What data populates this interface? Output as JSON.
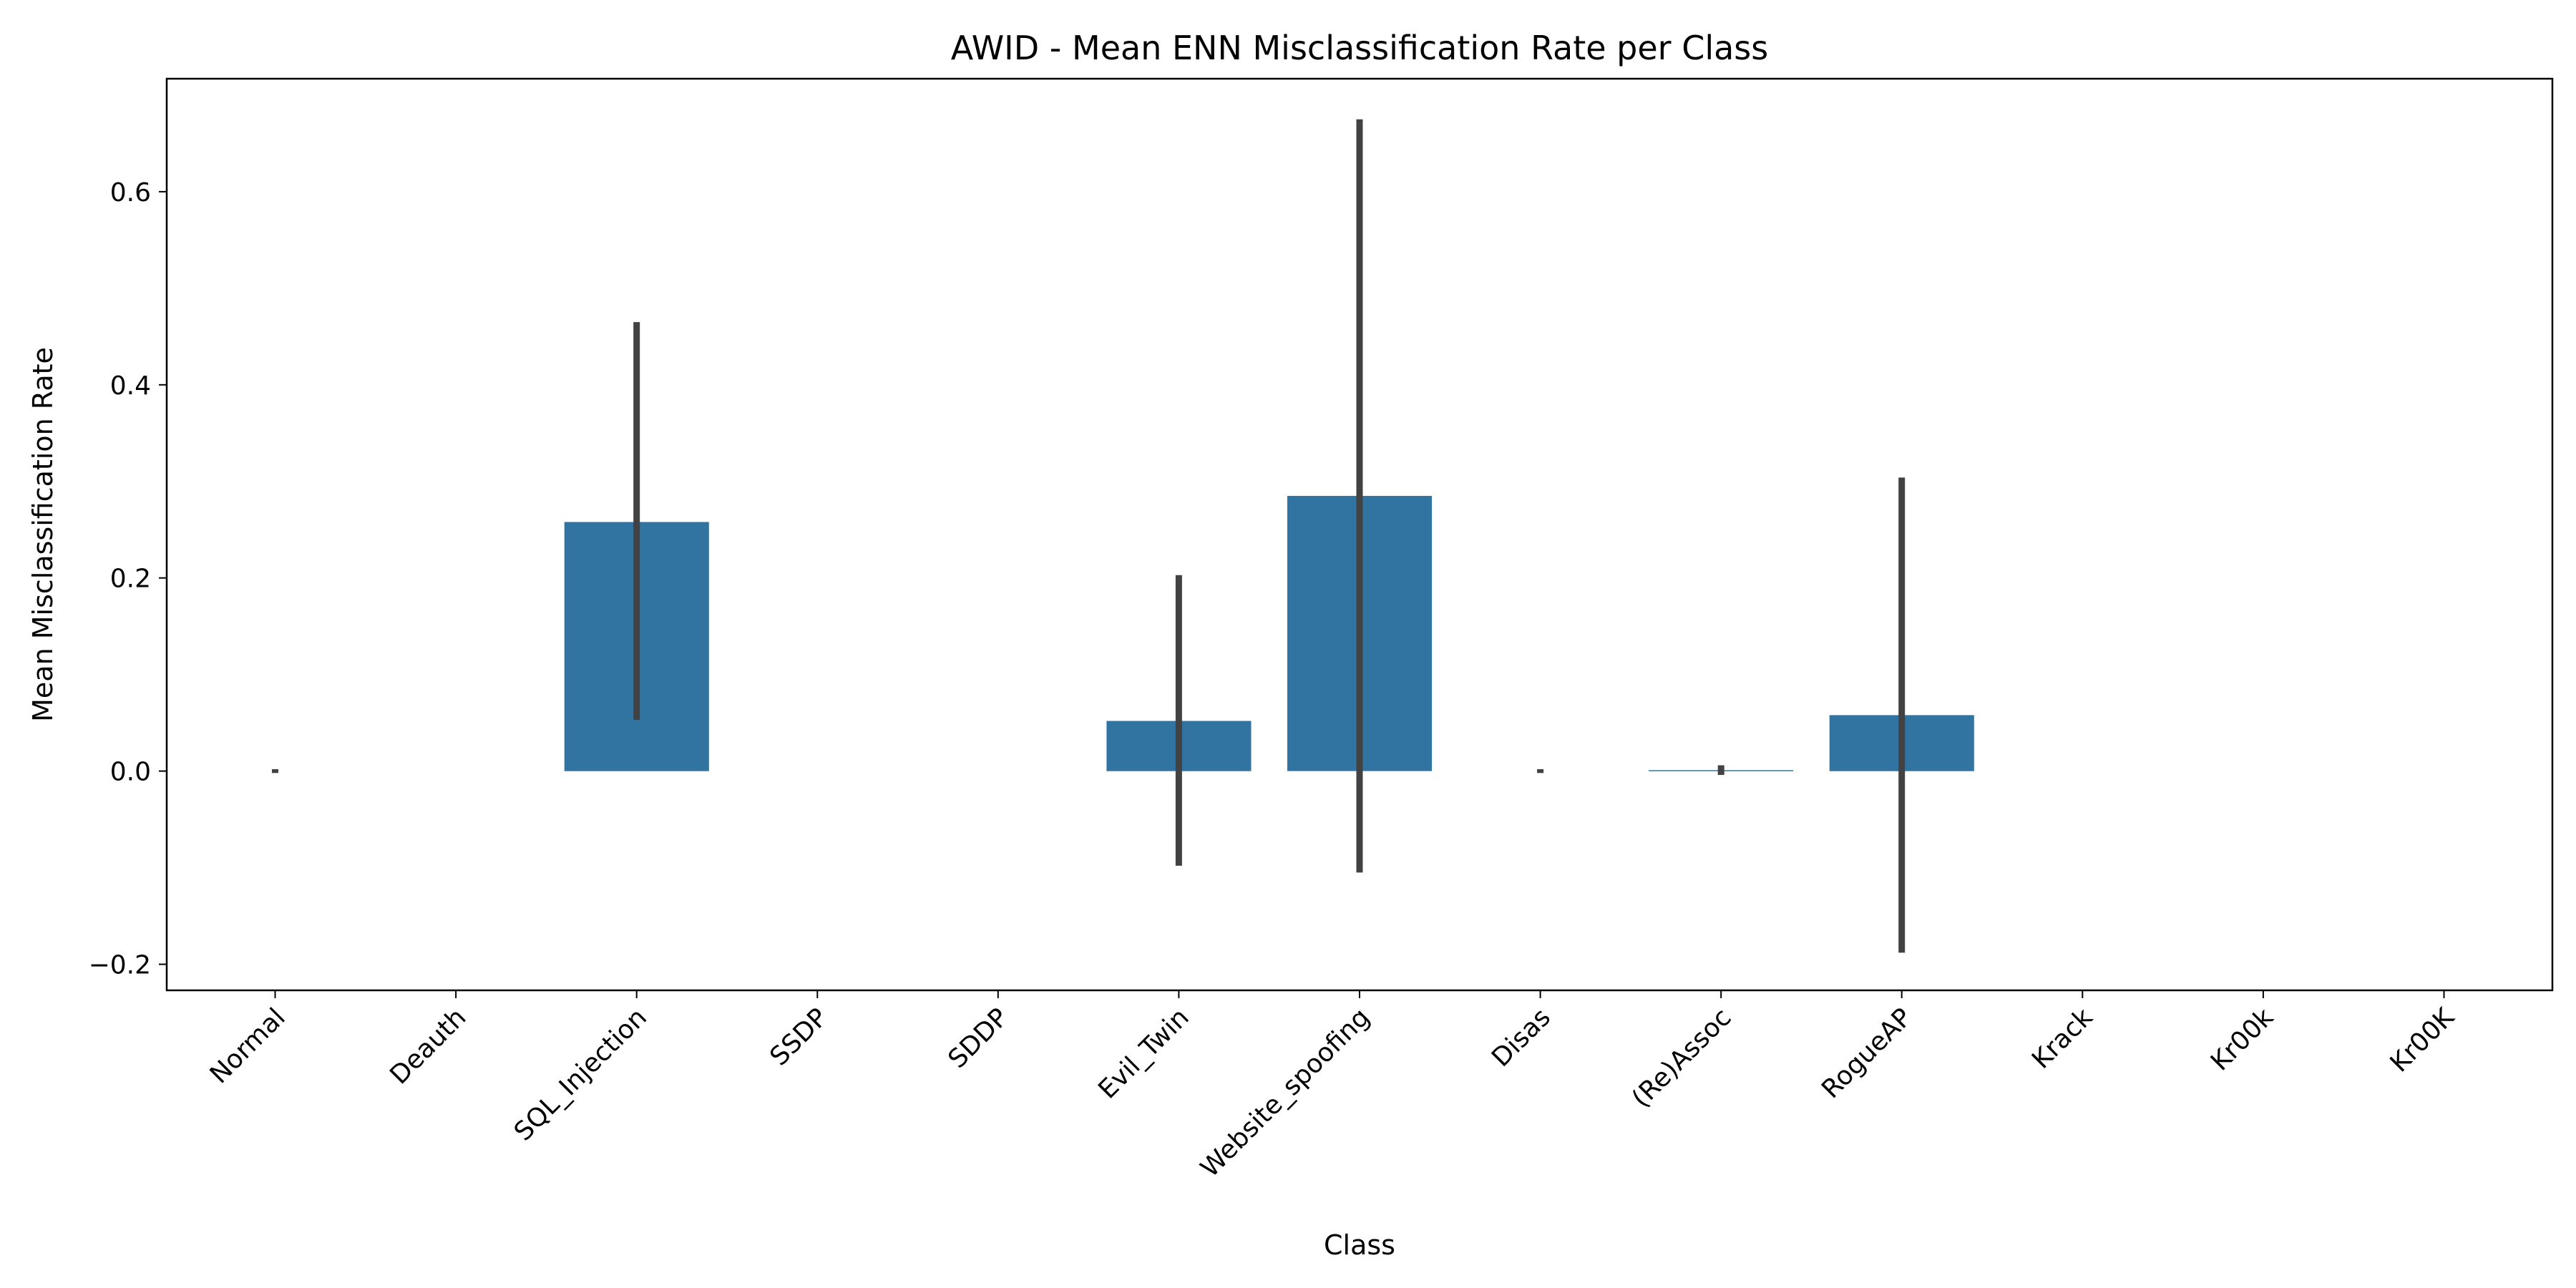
{
  "chart_data": {
    "type": "bar",
    "title": "AWID - Mean ENN Misclassification Rate per Class",
    "xlabel": "Class",
    "ylabel": "Mean Misclassification Rate",
    "categories": [
      "Normal",
      "Deauth",
      "SQL_Injection",
      "SSDP",
      "SDDP",
      "Evil_Twin",
      "Website_spoofing",
      "Disas",
      "(Re)Assoc",
      "RogueAP",
      "Krack",
      "Kr00k",
      "Kr00K"
    ],
    "values": [
      0.0,
      0.0,
      0.258,
      0.0,
      0.0,
      0.052,
      0.285,
      0.0,
      0.001,
      0.058,
      0.0,
      0.0,
      0.0
    ],
    "error_bars": [
      [
        -0.002,
        0.002
      ],
      null,
      [
        0.053,
        0.465
      ],
      null,
      null,
      [
        -0.098,
        0.203
      ],
      [
        -0.105,
        0.675
      ],
      [
        -0.002,
        0.002
      ],
      [
        -0.004,
        0.006
      ],
      [
        -0.188,
        0.304
      ],
      null,
      null,
      null
    ],
    "ylim": [
      -0.227,
      0.717
    ],
    "yticks": [
      -0.2,
      0.0,
      0.2,
      0.4,
      0.6
    ],
    "ytick_labels": [
      "−0.2",
      "0.0",
      "0.2",
      "0.4",
      "0.6"
    ],
    "bar_color": "#3274a1",
    "errorbar_color": "#424242",
    "grid": false,
    "legend": "none"
  }
}
